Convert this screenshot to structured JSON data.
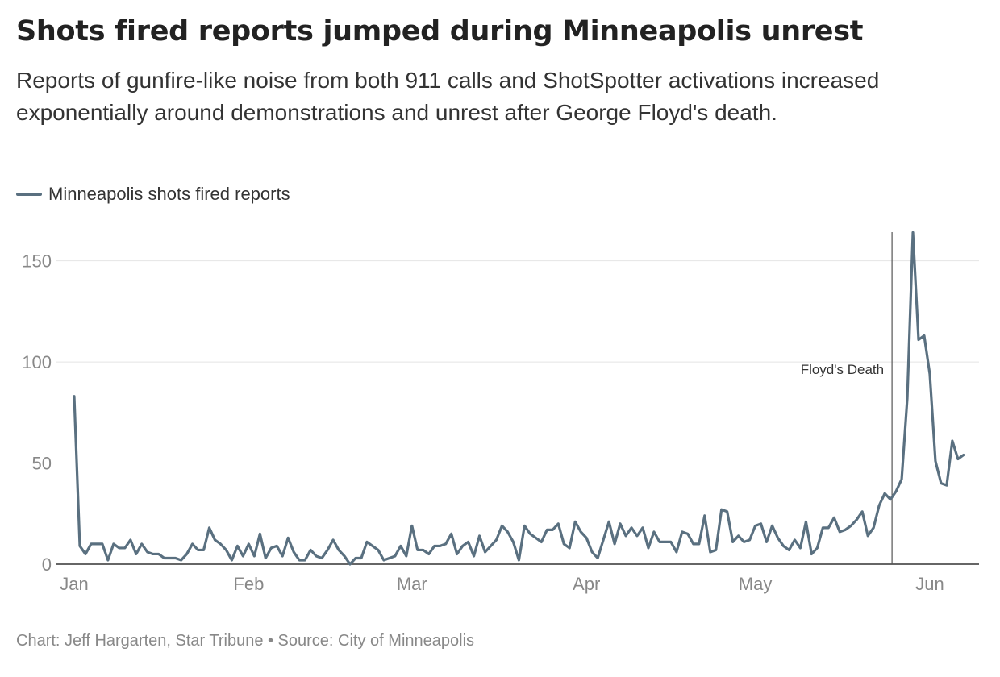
{
  "title": "Shots fired reports jumped during Minneapolis unrest",
  "subtitle": "Reports of gunfire-like noise from both 911 calls and ShotSpotter activations increased exponentially around demonstrations and unrest after George Floyd's death.",
  "legend": {
    "label": "Minneapolis shots fired reports",
    "color": "#5a7080"
  },
  "footer": "Chart: Jeff Hargarten, Star Tribune • Source: City of Minneapolis",
  "chart_data": {
    "type": "line",
    "x_start": "2020-01-01",
    "x_end": "2020-06-07",
    "x_tick_labels": [
      {
        "label": "Jan",
        "date": "2020-01-01"
      },
      {
        "label": "Feb",
        "date": "2020-02-01"
      },
      {
        "label": "Mar",
        "date": "2020-03-01"
      },
      {
        "label": "Apr",
        "date": "2020-04-01"
      },
      {
        "label": "May",
        "date": "2020-05-01"
      },
      {
        "label": "Jun",
        "date": "2020-06-01"
      }
    ],
    "y_ticks": [
      0,
      50,
      100,
      150
    ],
    "ylim": [
      0,
      165
    ],
    "grid": true,
    "legend_position": "top-left",
    "annotation": {
      "label": "Floyd's Death",
      "date": "2020-05-25"
    },
    "series": [
      {
        "name": "Minneapolis shots fired reports",
        "color": "#5a7080",
        "values": [
          83,
          9,
          5,
          10,
          10,
          10,
          2,
          10,
          8,
          8,
          12,
          5,
          10,
          6,
          5,
          5,
          3,
          3,
          3,
          2,
          5,
          10,
          7,
          7,
          18,
          12,
          10,
          7,
          2,
          9,
          4,
          10,
          4,
          15,
          3,
          8,
          9,
          4,
          13,
          6,
          2,
          2,
          7,
          4,
          3,
          7,
          12,
          7,
          4,
          0,
          3,
          3,
          11,
          9,
          7,
          2,
          3,
          4,
          9,
          4,
          19,
          7,
          7,
          5,
          9,
          9,
          10,
          15,
          5,
          9,
          11,
          4,
          14,
          6,
          9,
          12,
          19,
          16,
          11,
          2,
          19,
          15,
          13,
          11,
          17,
          17,
          20,
          10,
          8,
          21,
          16,
          13,
          6,
          3,
          12,
          21,
          10,
          20,
          14,
          18,
          14,
          18,
          8,
          16,
          11,
          11,
          11,
          6,
          16,
          15,
          10,
          10,
          24,
          6,
          7,
          27,
          26,
          11,
          14,
          11,
          12,
          19,
          20,
          11,
          19,
          13,
          9,
          7,
          12,
          8,
          21,
          5,
          8,
          18,
          18,
          23,
          16,
          17,
          19,
          22,
          26,
          14,
          18,
          29,
          35,
          32,
          36,
          42,
          82,
          164,
          111,
          113,
          94,
          51,
          40,
          39,
          61,
          52,
          54
        ]
      }
    ]
  }
}
